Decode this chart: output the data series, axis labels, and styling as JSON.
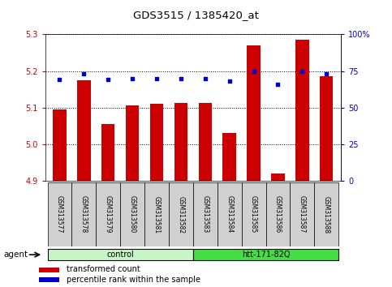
{
  "title": "GDS3515 / 1385420_at",
  "categories": [
    "GSM313577",
    "GSM313578",
    "GSM313579",
    "GSM313580",
    "GSM313581",
    "GSM313582",
    "GSM313583",
    "GSM313584",
    "GSM313585",
    "GSM313586",
    "GSM313587",
    "GSM313588"
  ],
  "red_values": [
    5.095,
    5.175,
    5.055,
    5.107,
    5.11,
    5.112,
    5.113,
    5.03,
    5.27,
    4.92,
    5.285,
    5.185
  ],
  "blue_values": [
    69,
    73,
    69,
    70,
    70,
    70,
    70,
    68,
    75,
    66,
    75,
    73
  ],
  "ymin": 4.9,
  "ymax": 5.3,
  "yticks": [
    4.9,
    5.0,
    5.1,
    5.2,
    5.3
  ],
  "y2min": 0,
  "y2max": 100,
  "y2ticks": [
    0,
    25,
    50,
    75,
    100
  ],
  "y2ticklabels": [
    "0",
    "25",
    "50",
    "75",
    "100%"
  ],
  "control_color_light": "#c8f5c8",
  "control_color_dark": "#44dd44",
  "bar_color": "#cc0000",
  "dot_color": "#0000cc",
  "bar_width": 0.55,
  "tick_color_left": "#cc0000",
  "tick_color_right": "#0000cc",
  "label_bg": "#d0d0d0",
  "agent_label": "agent",
  "legend_red_label": "transformed count",
  "legend_blue_label": "percentile rank within the sample"
}
